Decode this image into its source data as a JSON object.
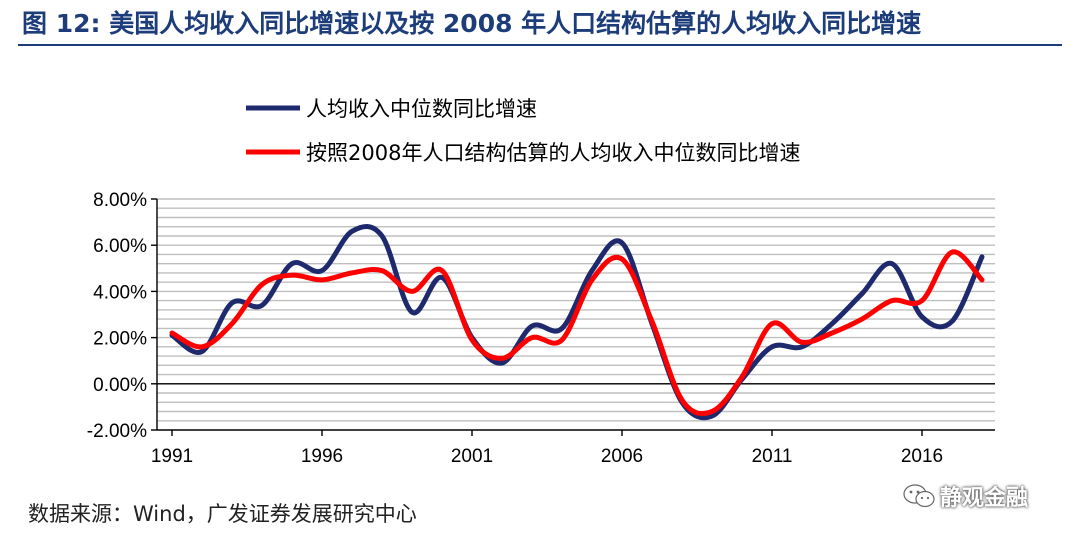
{
  "figure": {
    "title": "图 12:  美国人均收入同比增速以及按 2008 年人口结构估算的人均收入同比增速",
    "source": "数据来源：Wind，广发证券发展研究中心",
    "watermark": "静观金融"
  },
  "colors": {
    "series1": "#1f2a6e",
    "series2": "#ff0000",
    "title": "#1d3d7a",
    "grid": "#bfbfbf"
  },
  "chart_data": {
    "type": "line",
    "title": "美国人均收入同比增速以及按 2008 年人口结构估算的人均收入同比增速",
    "xlabel": "",
    "ylabel": "",
    "x": [
      1991,
      1992,
      1993,
      1994,
      1995,
      1996,
      1997,
      1998,
      1999,
      2000,
      2001,
      2002,
      2003,
      2004,
      2005,
      2006,
      2007,
      2008,
      2009,
      2010,
      2011,
      2012,
      2013,
      2014,
      2015,
      2016,
      2017,
      2018
    ],
    "xticks": [
      1991,
      1996,
      2001,
      2006,
      2011,
      2016
    ],
    "xlim": [
      1991,
      2018
    ],
    "ylim": [
      -2.0,
      8.0
    ],
    "yticks": [
      -2,
      0,
      2,
      4,
      6,
      8
    ],
    "ytick_labels": [
      "-2.00%",
      "0.00%",
      "2.00%",
      "4.00%",
      "6.00%",
      "8.00%"
    ],
    "grid": true,
    "legend_position": "top-left",
    "series": [
      {
        "name": "人均收入中位数同比增速",
        "color": "#1f2a6e",
        "values": [
          2.1,
          1.4,
          3.5,
          3.4,
          5.2,
          4.9,
          6.6,
          6.4,
          3.1,
          4.6,
          2.0,
          0.9,
          2.5,
          2.4,
          4.9,
          6.1,
          2.6,
          -0.8,
          -1.4,
          0.2,
          1.6,
          1.6,
          2.6,
          3.9,
          5.2,
          2.9,
          2.7,
          5.5
        ]
      },
      {
        "name": "按照2008年人口结构估算的人均收入中位数同比增速",
        "color": "#ff0000",
        "values": [
          2.2,
          1.6,
          2.6,
          4.3,
          4.7,
          4.5,
          4.8,
          4.9,
          4.0,
          4.9,
          1.9,
          1.1,
          2.0,
          1.9,
          4.5,
          5.4,
          2.7,
          -0.7,
          -1.2,
          0.3,
          2.6,
          1.8,
          2.2,
          2.8,
          3.6,
          3.6,
          5.7,
          4.5
        ]
      }
    ]
  }
}
